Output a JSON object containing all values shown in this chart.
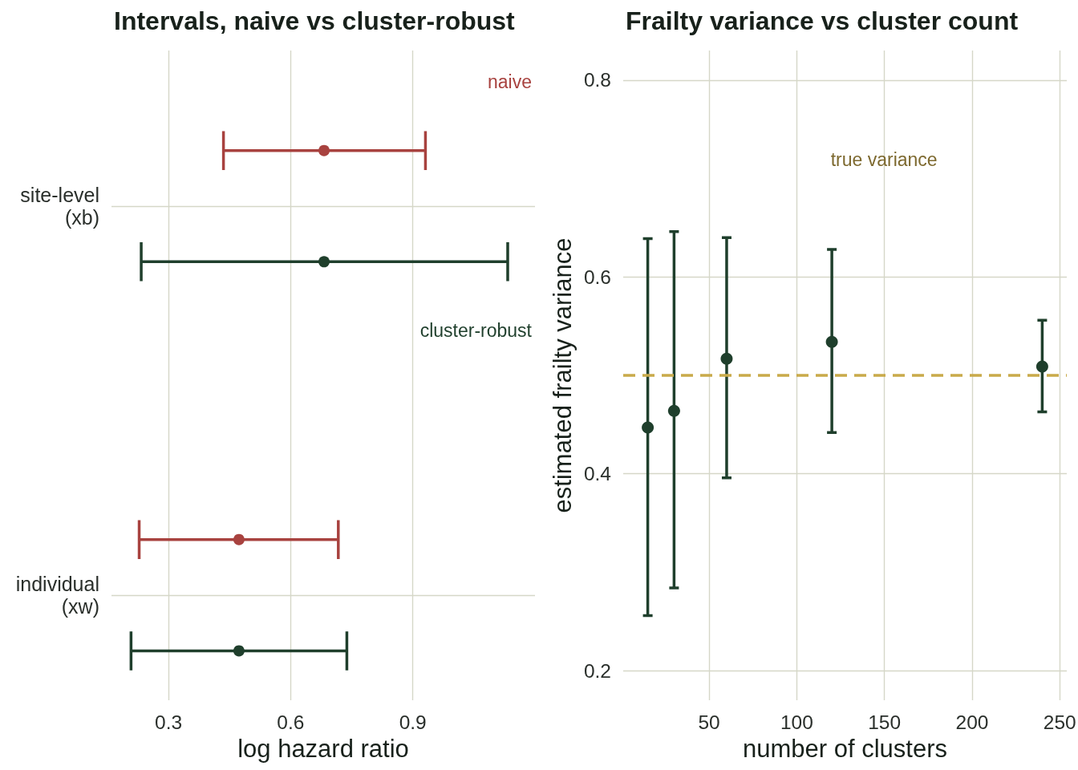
{
  "chart_data": [
    {
      "type": "scatter",
      "title": "Intervals, naive vs cluster-robust",
      "xlabel": "log hazard ratio",
      "orientation": "horizontal",
      "categories": [
        "site-level\n(xb)",
        "individual\n(xw)"
      ],
      "series": [
        {
          "name": "naive",
          "color": "#a8423f",
          "values": [
            0.682,
            0.473
          ],
          "errors": [
            [
              0.435,
              0.931
            ],
            [
              0.228,
              0.717
            ]
          ]
        },
        {
          "name": "cluster-robust",
          "color": "#1f3f2c",
          "values": [
            0.682,
            0.473
          ],
          "errors": [
            [
              0.233,
              1.133
            ],
            [
              0.208,
              0.738
            ]
          ]
        }
      ],
      "xlim": [
        0.16,
        1.2
      ],
      "xticks": [
        0.3,
        0.6,
        0.9
      ],
      "grid": true,
      "marker": "circle"
    },
    {
      "type": "scatter",
      "title": "Frailty variance vs cluster count",
      "xlabel": "number of clusters",
      "ylabel": "estimated frailty variance",
      "x": [
        15,
        30,
        60,
        120,
        240
      ],
      "values": [
        0.447,
        0.464,
        0.517,
        0.534,
        0.509
      ],
      "errors": [
        [
          0.256,
          0.639
        ],
        [
          0.284,
          0.646
        ],
        [
          0.396,
          0.64
        ],
        [
          0.442,
          0.628
        ],
        [
          0.463,
          0.556
        ]
      ],
      "color": "#1f3f2c",
      "xlim": [
        1,
        254
      ],
      "xticks": [
        50,
        100,
        150,
        200,
        250
      ],
      "ylim": [
        0.17,
        0.83
      ],
      "yticks": [
        0.2,
        0.4,
        0.6,
        0.8
      ],
      "ref_lines": [
        {
          "axis": "y",
          "value": 0.5,
          "color": "#c9aa4b",
          "line_style": "dashed"
        }
      ],
      "annotations": [
        "true variance"
      ],
      "grid": true,
      "marker": "circle"
    }
  ]
}
